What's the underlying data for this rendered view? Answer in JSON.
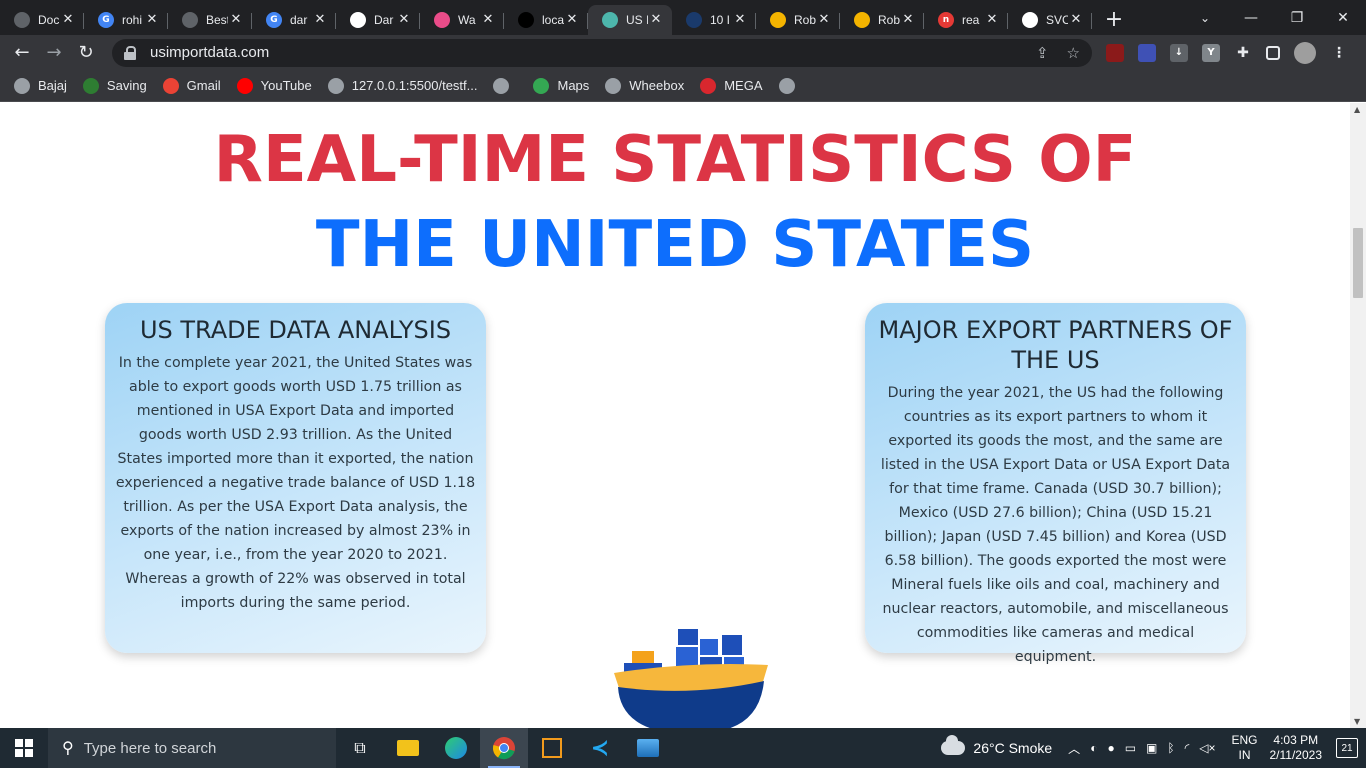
{
  "browser": {
    "tabs": [
      {
        "title": "Doc",
        "favicon_color": "#5f6368",
        "favicon_text": "",
        "active": false
      },
      {
        "title": "rohi",
        "favicon_color": "#4285f4",
        "favicon_text": "G",
        "active": false
      },
      {
        "title": "Best",
        "favicon_color": "#5f6368",
        "favicon_text": "",
        "active": false
      },
      {
        "title": "dar",
        "favicon_color": "#4285f4",
        "favicon_text": "G",
        "active": false
      },
      {
        "title": "Dar",
        "favicon_color": "#ffffff",
        "favicon_text": "",
        "active": false
      },
      {
        "title": "Wa",
        "favicon_color": "#ea4c89",
        "favicon_text": "",
        "active": false
      },
      {
        "title": "loca",
        "favicon_color": "#000000",
        "favicon_text": "",
        "active": false
      },
      {
        "title": "US I",
        "favicon_color": "#4db6ac",
        "favicon_text": "",
        "active": true
      },
      {
        "title": "10 I",
        "favicon_color": "#1a3a6b",
        "favicon_text": "",
        "active": false
      },
      {
        "title": "Rob",
        "favicon_color": "#f4b400",
        "favicon_text": "",
        "active": false
      },
      {
        "title": "Rob",
        "favicon_color": "#f4b400",
        "favicon_text": "",
        "active": false
      },
      {
        "title": "rea",
        "favicon_color": "#e53935",
        "favicon_text": "n",
        "active": false
      },
      {
        "title": "SVC",
        "favicon_color": "#ffffff",
        "favicon_text": "",
        "active": false
      }
    ],
    "url": "usimportdata.com",
    "bookmarks": [
      {
        "label": "Bajaj",
        "color": "#9aa0a6"
      },
      {
        "label": "Saving",
        "color": "#2e7d32"
      },
      {
        "label": "Gmail",
        "color": "#ea4335"
      },
      {
        "label": "YouTube",
        "color": "#ff0000"
      },
      {
        "label": "127.0.0.1:5500/testf...",
        "color": "#9aa0a6"
      },
      {
        "label": "",
        "color": "#9aa0a6"
      },
      {
        "label": "Maps",
        "color": "#34a853"
      },
      {
        "label": "Wheebox",
        "color": "#9aa0a6"
      },
      {
        "label": "MEGA",
        "color": "#d9272e"
      },
      {
        "label": "",
        "color": "#9aa0a6"
      }
    ]
  },
  "page": {
    "title_line1": "REAL-TIME STATISTICS OF",
    "title_line2": "THE UNITED STATES",
    "trade_card": {
      "heading": "US TRADE DATA ANALYSIS",
      "body": "In the complete year 2021, the United States was able to export goods worth USD 1.75 trillion as mentioned in USA Export Data and imported goods worth USD 2.93 trillion. As the United States imported more than it exported, the nation experienced a negative trade balance of USD 1.18 trillion. As per the USA Export Data analysis, the exports of the nation increased by almost 23% in one year, i.e., from the year 2020 to 2021. Whereas a growth of 22% was observed in total imports during the same period."
    },
    "export_card": {
      "heading": "MAJOR EXPORT PARTNERS OF THE US",
      "body": "During the year 2021, the US had the following countries as its export partners to whom it exported its goods the most, and the same are listed in the USA Export Data or USA Export Data for that time frame. Canada (USD 30.7 billion); Mexico (USD 27.6 billion); China (USD 15.21 billion); Japan (USD 7.45 billion) and Korea (USD 6.58 billion). The goods exported the most were Mineral fuels like oils and coal, machinery and nuclear reactors, automobile, and miscellaneous commodities like cameras and medical equipment."
    }
  },
  "taskbar": {
    "search_placeholder": "Type here to search",
    "weather": "26°C  Smoke",
    "lang_line1": "ENG",
    "lang_line2": "IN",
    "time": "4:03 PM",
    "date": "2/11/2023",
    "notifications": "21"
  },
  "colors": {
    "title_red": "#dc3545",
    "title_blue": "#0d6efd",
    "card_gradient_start": "#9ed3f5",
    "card_gradient_end": "#e9f5fd"
  }
}
